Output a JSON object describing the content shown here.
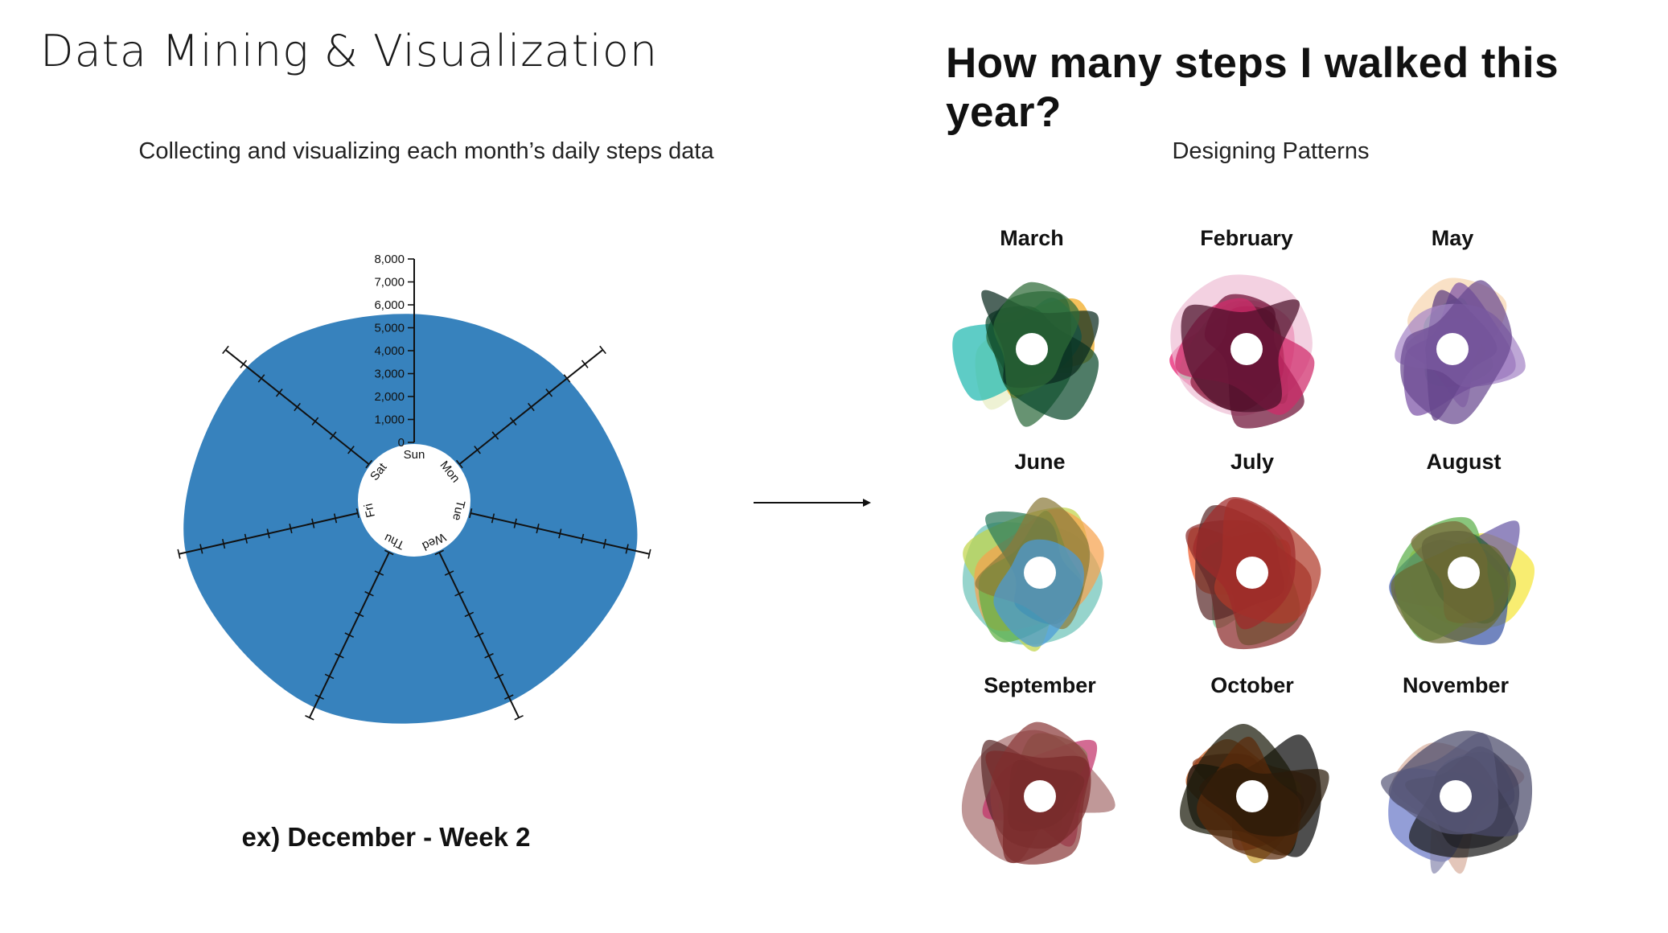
{
  "header": {
    "left_title": "Data Mining & Visualization",
    "right_title": "How many steps I walked this year?",
    "left_subtitle": "Collecting and visualizing each month’s daily steps data",
    "right_subtitle": "Designing Patterns"
  },
  "caption": "ex) December - Week 2",
  "chart_data": {
    "type": "radial-area",
    "fill_color": "#3782bd",
    "days": [
      "Sun",
      "Mon",
      "Tue",
      "Wed",
      "Thu",
      "Fri",
      "Sat"
    ],
    "values": [
      5600,
      6000,
      7400,
      7200,
      7500,
      7700,
      6800
    ],
    "axis_ticks": [
      "0",
      "1,000",
      "2,000",
      "3,000",
      "4,000",
      "5,000",
      "6,000",
      "7,000",
      "8,000"
    ],
    "axis_max": 8000
  },
  "patterns": [
    {
      "month": "March",
      "colors": [
        "#e8edc4",
        "#f0a81c",
        "#20b8b0",
        "#2d6a3c",
        "#0b4a2c",
        "#0a2a1e",
        "#2e6b38"
      ]
    },
    {
      "month": "February",
      "colors": [
        "#e8176c",
        "#2ba14a",
        "#eebfd6",
        "#8a1a3c",
        "#6e0f35",
        "#d02a6a",
        "#4a0f28"
      ]
    },
    {
      "month": "May",
      "colors": [
        "#f7d6b0",
        "#8fcf9a",
        "#b995d0",
        "#7b52a6",
        "#5a3a80",
        "#a585c6",
        "#6a4a90"
      ]
    },
    {
      "month": "June",
      "colors": [
        "#6ec3b8",
        "#c0d44a",
        "#f6a24e",
        "#5db042",
        "#2b7a5c",
        "#8a7a3a",
        "#4a9ad8"
      ]
    },
    {
      "month": "July",
      "colors": [
        "#7fcf9a",
        "#ef5a2a",
        "#2ea84a",
        "#8a2a2a",
        "#5a2a2a",
        "#b03a2a",
        "#a02a2a"
      ]
    },
    {
      "month": "August",
      "colors": [
        "#f5e63a",
        "#3a56a6",
        "#6a5aa6",
        "#5cae4a",
        "#2a5a3a",
        "#7a6a3a",
        "#6a6a30"
      ]
    },
    {
      "month": "September",
      "colors": [
        "#a87070",
        "#c2326a",
        "#8a7a5a",
        "#5a2a2a",
        "#3a1a1a",
        "#8a3a3a",
        "#7a2a2a"
      ]
    },
    {
      "month": "October",
      "colors": [
        "#c85a1a",
        "#c9a030",
        "#8a3a1a",
        "#0a0a0a",
        "#1a1a0a",
        "#5a2a0a",
        "#2a1a0a"
      ]
    },
    {
      "month": "November",
      "colors": [
        "#d8b0a0",
        "#6a78c8",
        "#8a8ab0",
        "#2a2a3a",
        "#1a1a1a",
        "#4a4a6a",
        "#5a5a7a"
      ]
    }
  ]
}
